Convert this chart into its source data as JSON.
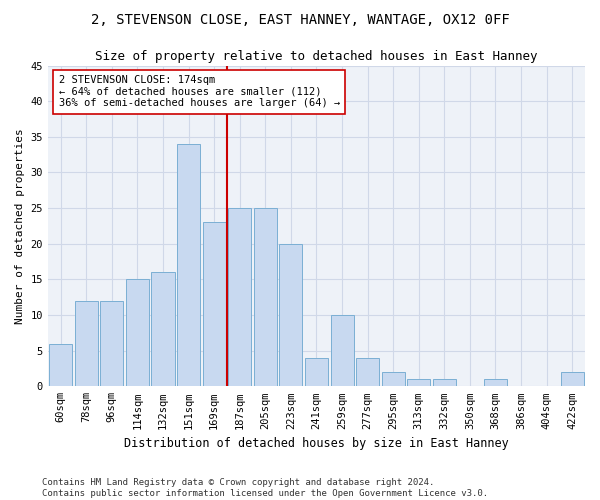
{
  "title1": "2, STEVENSON CLOSE, EAST HANNEY, WANTAGE, OX12 0FF",
  "title2": "Size of property relative to detached houses in East Hanney",
  "xlabel": "Distribution of detached houses by size in East Hanney",
  "ylabel": "Number of detached properties",
  "categories": [
    "60sqm",
    "78sqm",
    "96sqm",
    "114sqm",
    "132sqm",
    "151sqm",
    "169sqm",
    "187sqm",
    "205sqm",
    "223sqm",
    "241sqm",
    "259sqm",
    "277sqm",
    "295sqm",
    "313sqm",
    "332sqm",
    "350sqm",
    "368sqm",
    "386sqm",
    "404sqm",
    "422sqm"
  ],
  "bar_values": [
    6,
    12,
    12,
    15,
    16,
    34,
    23,
    25,
    25,
    20,
    4,
    10,
    4,
    2,
    1,
    1,
    0,
    1,
    0,
    0,
    2
  ],
  "bar_color": "#c8d9f0",
  "bar_edge_color": "#7bafd4",
  "vline_pos": 6.5,
  "vline_color": "#cc0000",
  "annotation_text": "2 STEVENSON CLOSE: 174sqm\n← 64% of detached houses are smaller (112)\n36% of semi-detached houses are larger (64) →",
  "annotation_box_color": "#ffffff",
  "annotation_box_edge": "#cc0000",
  "ylim": [
    0,
    45
  ],
  "yticks": [
    0,
    5,
    10,
    15,
    20,
    25,
    30,
    35,
    40,
    45
  ],
  "grid_color": "#d0d8e8",
  "bg_color": "#eef2f8",
  "footer": "Contains HM Land Registry data © Crown copyright and database right 2024.\nContains public sector information licensed under the Open Government Licence v3.0.",
  "title1_fontsize": 10,
  "title2_fontsize": 9,
  "xlabel_fontsize": 8.5,
  "ylabel_fontsize": 8,
  "tick_fontsize": 7.5,
  "footer_fontsize": 6.5,
  "annotation_fontsize": 7.5
}
